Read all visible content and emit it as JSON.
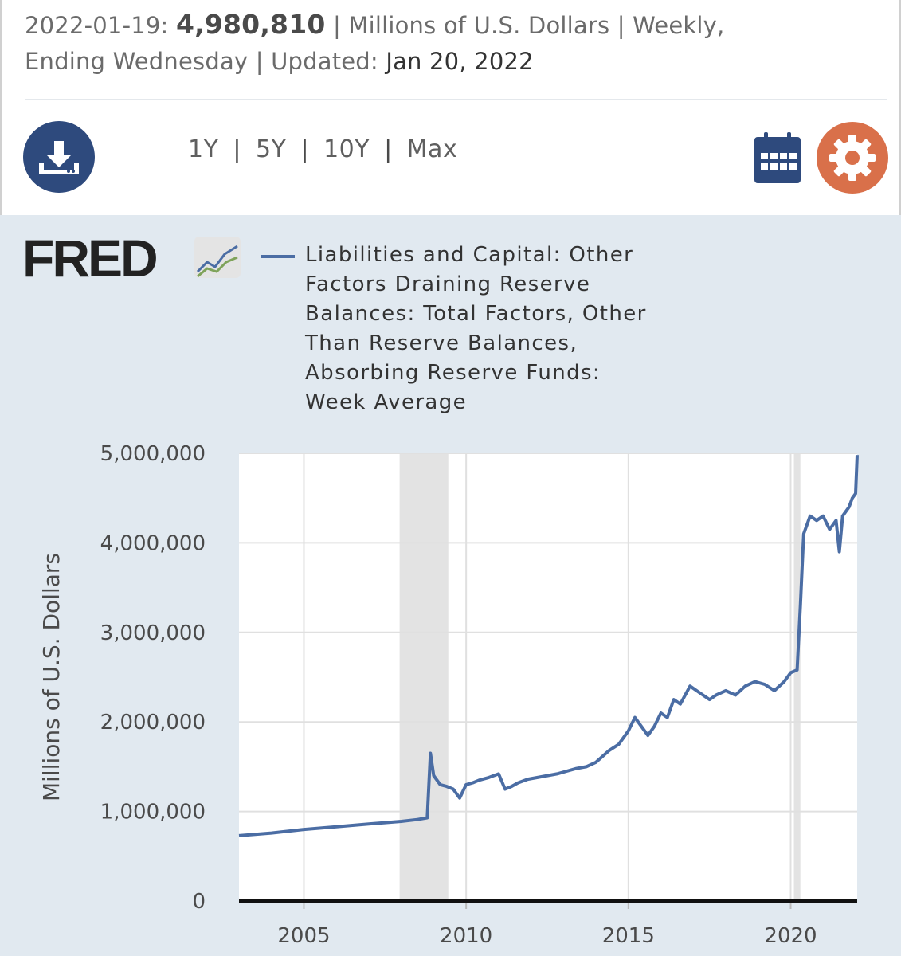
{
  "header": {
    "date": "2022-01-19:",
    "value": "4,980,810",
    "units_text": "| Millions of U.S. Dollars | Weekly,",
    "frequency_text": "Ending Wednesday | Updated:",
    "updated_date": "Jan 20, 2022"
  },
  "toolbar": {
    "ranges": [
      "1Y",
      "5Y",
      "10Y",
      "Max"
    ],
    "separator": "|"
  },
  "logo": {
    "text": "FRED"
  },
  "legend": {
    "lines": [
      "Liabilities and Capital: Other",
      "Factors Draining Reserve",
      "Balances: Total Factors, Other",
      "Than Reserve Balances,",
      "Absorbing Reserve Funds:",
      "Week Average"
    ]
  },
  "colors": {
    "series": "#4b6da4",
    "recession": "#e3e3e3",
    "download": "#2e4a7d",
    "calendar": "#2e4a7d",
    "gear": "#d9704a",
    "panel": "#e1e9f0"
  },
  "chart_data": {
    "type": "line",
    "title": "Liabilities and Capital: Other Factors Draining Reserve Balances: Total Factors, Other Than Reserve Balances, Absorbing Reserve Funds: Week Average",
    "xlabel": "",
    "ylabel": "Millions of U.S. Dollars",
    "xlim": [
      2003.0,
      2022.05
    ],
    "ylim": [
      0,
      5000000
    ],
    "x_ticks": [
      2005,
      2010,
      2015,
      2020
    ],
    "x_tick_labels": [
      "2005",
      "2010",
      "2015",
      "2020"
    ],
    "y_ticks": [
      0,
      1000000,
      2000000,
      3000000,
      4000000,
      5000000
    ],
    "y_tick_labels": [
      "0",
      "1,000,000",
      "2,000,000",
      "3,000,000",
      "4,000,000",
      "5,000,000"
    ],
    "grid": true,
    "recessions": [
      [
        2007.95,
        2009.45
      ],
      [
        2020.1,
        2020.3
      ]
    ],
    "series": [
      {
        "name": "Liabilities and Capital: Other Factors Draining Reserve Balances: Total Factors, Other Than Reserve Balances, Absorbing Reserve Funds: Week Average",
        "x": [
          2003.0,
          2004.0,
          2005.0,
          2006.0,
          2007.0,
          2008.0,
          2008.5,
          2008.8,
          2008.9,
          2009.0,
          2009.2,
          2009.4,
          2009.6,
          2009.8,
          2010.0,
          2010.2,
          2010.4,
          2010.7,
          2011.0,
          2011.2,
          2011.4,
          2011.6,
          2011.9,
          2012.2,
          2012.5,
          2012.8,
          2013.1,
          2013.4,
          2013.7,
          2014.0,
          2014.4,
          2014.7,
          2015.0,
          2015.2,
          2015.4,
          2015.6,
          2015.8,
          2016.0,
          2016.2,
          2016.4,
          2016.6,
          2016.9,
          2017.1,
          2017.3,
          2017.5,
          2017.7,
          2018.0,
          2018.3,
          2018.6,
          2018.9,
          2019.2,
          2019.5,
          2019.8,
          2020.0,
          2020.2,
          2020.3,
          2020.4,
          2020.6,
          2020.8,
          2021.0,
          2021.2,
          2021.4,
          2021.5,
          2021.6,
          2021.8,
          2021.9,
          2022.0,
          2022.05
        ],
        "y": [
          730000,
          760000,
          800000,
          830000,
          860000,
          890000,
          910000,
          930000,
          1650000,
          1400000,
          1300000,
          1280000,
          1250000,
          1150000,
          1300000,
          1320000,
          1350000,
          1380000,
          1420000,
          1250000,
          1280000,
          1320000,
          1360000,
          1380000,
          1400000,
          1420000,
          1450000,
          1480000,
          1500000,
          1550000,
          1680000,
          1750000,
          1900000,
          2050000,
          1950000,
          1850000,
          1950000,
          2100000,
          2050000,
          2250000,
          2200000,
          2400000,
          2350000,
          2300000,
          2250000,
          2300000,
          2350000,
          2300000,
          2400000,
          2450000,
          2420000,
          2350000,
          2450000,
          2550000,
          2580000,
          3300000,
          4100000,
          4300000,
          4250000,
          4300000,
          4150000,
          4250000,
          3900000,
          4300000,
          4400000,
          4500000,
          4550000,
          4980810
        ]
      }
    ]
  }
}
